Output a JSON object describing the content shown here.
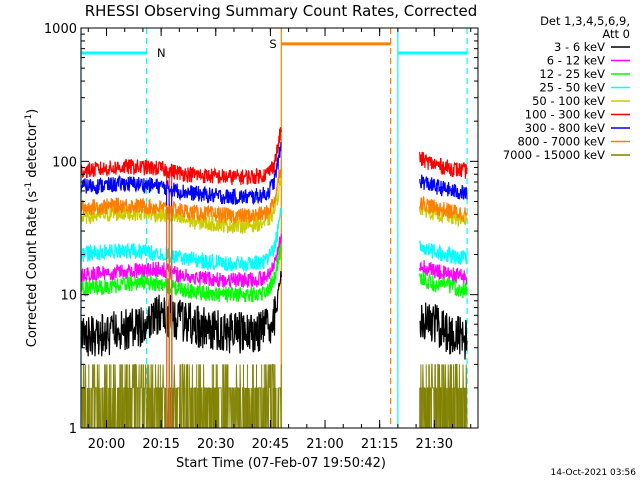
{
  "chart_data": {
    "type": "line",
    "title": "RHESSI Observing Summary Count Rates, Corrected",
    "xlabel": "Start Time (07-Feb-07 19:50:42)",
    "ylabel_main": "Corrected Count Rate (s",
    "ylabel_sup1": "-1",
    "ylabel_mid": " detector",
    "ylabel_sup2": "-1",
    "ylabel_end": ")",
    "yscale": "log",
    "ylim": [
      1,
      1000
    ],
    "xlim_minutes": [
      -7.0,
      102.0
    ],
    "x_ticks": [
      {
        "minute": 0,
        "label": "20:00"
      },
      {
        "minute": 15,
        "label": "20:15"
      },
      {
        "minute": 30,
        "label": "20:30"
      },
      {
        "minute": 45,
        "label": "20:45"
      },
      {
        "minute": 60,
        "label": "21:00"
      },
      {
        "minute": 75,
        "label": "21:15"
      },
      {
        "minute": 90,
        "label": "21:30"
      }
    ],
    "y_ticks": [
      {
        "value": 1,
        "label": "1"
      },
      {
        "value": 10,
        "label": "10"
      },
      {
        "value": 100,
        "label": "100"
      },
      {
        "value": 1000,
        "label": "1000"
      }
    ],
    "legend_header_1": "Det 1,3,4,5,6,9,",
    "legend_header_2": "Att 0",
    "legend_placement": "right",
    "timestamp": "14-Oct-2021 03:56",
    "flags": [
      {
        "label": "N",
        "color": "#00ffff",
        "value": 650,
        "segments": [
          [
            -7.0,
            11.0
          ],
          [
            80.0,
            99.0
          ]
        ]
      },
      {
        "label": "S",
        "color": "#ff8000",
        "value": 760,
        "segments": [
          [
            48.0,
            78.0
          ]
        ]
      }
    ],
    "vertical_lines": [
      {
        "minute": -7.0,
        "color": "#00ffff",
        "style": "solid"
      },
      {
        "minute": 11.0,
        "color": "#00ffff",
        "style": "dashed"
      },
      {
        "minute": 48.0,
        "color": "#ff8000",
        "style": "solid"
      },
      {
        "minute": 78.0,
        "color": "#ff8000",
        "style": "dashed"
      },
      {
        "minute": 80.0,
        "color": "#00ffff",
        "style": "solid"
      },
      {
        "minute": 99.0,
        "color": "#00ffff",
        "style": "dashed"
      }
    ],
    "series": [
      {
        "name": "3 - 6 keV",
        "color": "#000000",
        "seg1": [
          [
            -7,
            4.8
          ],
          [
            0,
            5.0
          ],
          [
            5,
            5.5
          ],
          [
            10,
            6.0
          ],
          [
            15,
            7.2
          ],
          [
            20,
            6.5
          ],
          [
            25,
            5.8
          ],
          [
            30,
            5.4
          ],
          [
            35,
            5.2
          ],
          [
            40,
            5.2
          ],
          [
            44,
            5.5
          ],
          [
            46,
            6.5
          ],
          [
            47,
            9.0
          ],
          [
            48,
            15.0
          ]
        ],
        "seg2": [
          [
            86,
            7.0
          ],
          [
            90,
            6.0
          ],
          [
            95,
            5.0
          ],
          [
            99,
            4.6
          ]
        ]
      },
      {
        "name": "6 - 12 keV",
        "color": "#ff00ff",
        "seg1": [
          [
            -7,
            14.0
          ],
          [
            0,
            14.5
          ],
          [
            5,
            15.0
          ],
          [
            10,
            15.2
          ],
          [
            15,
            15.5
          ],
          [
            20,
            14.0
          ],
          [
            25,
            13.5
          ],
          [
            30,
            13.0
          ],
          [
            35,
            12.8
          ],
          [
            40,
            12.8
          ],
          [
            44,
            13.5
          ],
          [
            46,
            16.0
          ],
          [
            47,
            20.0
          ],
          [
            48,
            28.0
          ]
        ],
        "seg2": [
          [
            86,
            16.5
          ],
          [
            90,
            15.0
          ],
          [
            95,
            14.0
          ],
          [
            99,
            13.5
          ]
        ]
      },
      {
        "name": "12 - 25 keV",
        "color": "#00ff00",
        "seg1": [
          [
            -7,
            11.0
          ],
          [
            0,
            11.5
          ],
          [
            5,
            12.0
          ],
          [
            10,
            12.5
          ],
          [
            15,
            12.0
          ],
          [
            20,
            11.0
          ],
          [
            25,
            10.5
          ],
          [
            30,
            10.0
          ],
          [
            35,
            10.0
          ],
          [
            40,
            10.0
          ],
          [
            44,
            10.5
          ],
          [
            46,
            13.0
          ],
          [
            47,
            17.0
          ],
          [
            48,
            24.0
          ]
        ],
        "seg2": [
          [
            86,
            13.5
          ],
          [
            90,
            12.0
          ],
          [
            95,
            11.5
          ],
          [
            99,
            10.5
          ]
        ]
      },
      {
        "name": "25 - 50 keV",
        "color": "#00ffff",
        "seg1": [
          [
            -7,
            20.0
          ],
          [
            0,
            21.0
          ],
          [
            5,
            21.5
          ],
          [
            10,
            21.0
          ],
          [
            15,
            20.5
          ],
          [
            20,
            19.0
          ],
          [
            25,
            18.0
          ],
          [
            30,
            17.5
          ],
          [
            35,
            17.0
          ],
          [
            40,
            17.0
          ],
          [
            44,
            18.0
          ],
          [
            46,
            22.0
          ],
          [
            47,
            30.0
          ],
          [
            48,
            42.0
          ]
        ],
        "seg2": [
          [
            86,
            23.0
          ],
          [
            90,
            21.0
          ],
          [
            95,
            19.5
          ],
          [
            99,
            18.5
          ]
        ]
      },
      {
        "name": "50 - 100 keV",
        "color": "#cccc00",
        "seg1": [
          [
            -7,
            38.0
          ],
          [
            0,
            40.0
          ],
          [
            5,
            41.0
          ],
          [
            10,
            41.0
          ],
          [
            15,
            40.0
          ],
          [
            20,
            37.0
          ],
          [
            25,
            35.0
          ],
          [
            30,
            34.0
          ],
          [
            35,
            33.0
          ],
          [
            40,
            33.5
          ],
          [
            44,
            35.0
          ],
          [
            46,
            42.0
          ],
          [
            47,
            55.0
          ],
          [
            48,
            75.0
          ]
        ],
        "seg2": [
          [
            86,
            45.0
          ],
          [
            90,
            41.0
          ],
          [
            95,
            38.0
          ],
          [
            99,
            36.0
          ]
        ]
      },
      {
        "name": "100 - 300 keV",
        "color": "#ff0000",
        "seg1": [
          [
            -7,
            85.0
          ],
          [
            0,
            88.0
          ],
          [
            5,
            91.0
          ],
          [
            10,
            90.0
          ],
          [
            15,
            88.0
          ],
          [
            20,
            82.0
          ],
          [
            25,
            79.0
          ],
          [
            30,
            77.0
          ],
          [
            35,
            76.0
          ],
          [
            40,
            76.5
          ],
          [
            44,
            80.0
          ],
          [
            46,
            95.0
          ],
          [
            47,
            125.0
          ],
          [
            48,
            180.0
          ]
        ],
        "seg2": [
          [
            86,
            105.0
          ],
          [
            90,
            95.0
          ],
          [
            95,
            88.0
          ],
          [
            99,
            84.0
          ]
        ]
      },
      {
        "name": "300 - 800 keV",
        "color": "#0000ff",
        "seg1": [
          [
            -7,
            65.0
          ],
          [
            0,
            66.0
          ],
          [
            5,
            68.0
          ],
          [
            10,
            67.0
          ],
          [
            15,
            65.0
          ],
          [
            20,
            60.0
          ],
          [
            25,
            57.0
          ],
          [
            30,
            55.0
          ],
          [
            35,
            54.0
          ],
          [
            40,
            54.0
          ],
          [
            44,
            57.0
          ],
          [
            46,
            70.0
          ],
          [
            47,
            95.0
          ],
          [
            48,
            135.0
          ]
        ],
        "seg2": [
          [
            86,
            72.0
          ],
          [
            90,
            65.0
          ],
          [
            95,
            60.0
          ],
          [
            99,
            57.0
          ]
        ]
      },
      {
        "name": "800 - 7000 keV",
        "color": "#ff8000",
        "seg1": [
          [
            -7,
            45.0
          ],
          [
            0,
            46.0
          ],
          [
            5,
            47.0
          ],
          [
            10,
            46.0
          ],
          [
            15,
            45.0
          ],
          [
            20,
            43.0
          ],
          [
            25,
            41.0
          ],
          [
            30,
            40.0
          ],
          [
            35,
            39.0
          ],
          [
            40,
            39.0
          ],
          [
            44,
            41.0
          ],
          [
            46,
            50.0
          ],
          [
            47,
            68.0
          ],
          [
            48,
            95.0
          ]
        ],
        "seg2": [
          [
            86,
            50.0
          ],
          [
            90,
            45.0
          ],
          [
            95,
            42.0
          ],
          [
            99,
            40.0
          ]
        ]
      },
      {
        "name": "7000 - 15000 keV",
        "color": "#808000",
        "seg1": [
          [
            -7,
            1.5
          ],
          [
            0,
            1.6
          ],
          [
            5,
            1.7
          ],
          [
            10,
            1.7
          ],
          [
            15,
            1.6
          ],
          [
            20,
            1.6
          ],
          [
            25,
            1.5
          ],
          [
            30,
            1.5
          ],
          [
            35,
            1.5
          ],
          [
            40,
            1.5
          ],
          [
            44,
            1.6
          ],
          [
            46,
            1.8
          ],
          [
            47,
            2.1
          ],
          [
            48,
            2.5
          ]
        ],
        "seg2": [
          [
            86,
            1.6
          ],
          [
            90,
            1.5
          ],
          [
            95,
            1.5
          ],
          [
            99,
            1.4
          ]
        ]
      }
    ]
  }
}
